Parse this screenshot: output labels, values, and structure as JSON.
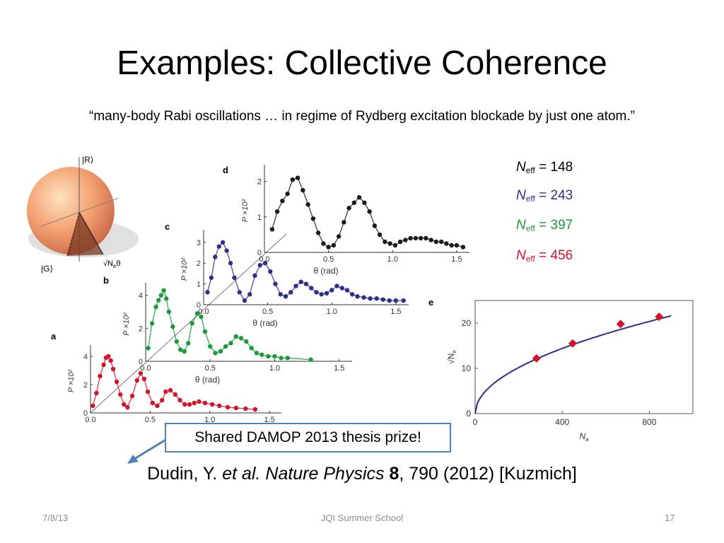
{
  "slide": {
    "title": "Examples: Collective Coherence",
    "quote": "“many-body Rabi oscillations … in regime of Rydberg excitation blockade by just one atom.”",
    "neff_list": [
      {
        "symbol": "N",
        "sub": "eff",
        "value": "= 148",
        "color": "#000000"
      },
      {
        "symbol": "N",
        "sub": "eff",
        "value": "= 243",
        "color": "#2e2e8c"
      },
      {
        "symbol": "N",
        "sub": "eff",
        "value": "= 397",
        "color": "#1a9a3a"
      },
      {
        "symbol": "N",
        "sub": "eff",
        "value": "= 456",
        "color": "#d4132a"
      }
    ],
    "prize": "Shared DAMOP 2013 thesis prize!",
    "citation": {
      "authors": "Dudin, Y. ",
      "etal": "et al.",
      "journal": " Nature Physics",
      "volume": " 8",
      "rest": ", 790 (2012) [Kuzmich]"
    },
    "footer": {
      "date": "7/8/13",
      "center": "JQI Summer School",
      "page": "17"
    }
  },
  "sphere": {
    "top_label": "|R⟩",
    "bottom_label": "|G⟩",
    "angle_label": "√N",
    "angle_sub": "e",
    "angle_theta": "θ"
  },
  "chart_data": [
    {
      "panel": "a",
      "type": "scatter",
      "xlabel": "θ (rad)",
      "ylabel": "P ×10²",
      "xticks": [
        "0.0",
        "0.5",
        "1.0",
        "1.5"
      ],
      "yticks": [
        "0",
        "2",
        "4"
      ],
      "xlim": [
        0,
        1.6
      ],
      "ylim": [
        0,
        4.5
      ],
      "color": "#d4132a",
      "x": [
        0.02,
        0.05,
        0.08,
        0.11,
        0.13,
        0.15,
        0.17,
        0.19,
        0.22,
        0.25,
        0.28,
        0.31,
        0.35,
        0.39,
        0.42,
        0.45,
        0.48,
        0.52,
        0.56,
        0.6,
        0.63,
        0.67,
        0.71,
        0.75,
        0.79,
        0.83,
        0.87,
        0.91,
        0.96,
        1.02,
        1.08,
        1.15,
        1.22,
        1.3,
        1.38
      ],
      "y": [
        0.5,
        1.4,
        2.6,
        3.4,
        3.9,
        4.0,
        3.7,
        3.1,
        2.2,
        1.3,
        0.6,
        0.4,
        1.2,
        2.3,
        2.8,
        2.4,
        1.5,
        0.7,
        0.5,
        0.9,
        1.5,
        1.6,
        1.3,
        0.9,
        0.6,
        0.6,
        0.7,
        0.8,
        0.7,
        0.6,
        0.5,
        0.4,
        0.35,
        0.3,
        0.25
      ]
    },
    {
      "panel": "b",
      "type": "scatter",
      "xlabel": "θ (rad)",
      "ylabel": "P ×10²",
      "xticks": [
        "0.0",
        "0.5",
        "1.0",
        "1.5"
      ],
      "yticks": [
        "0",
        "2",
        "4"
      ],
      "xlim": [
        0,
        1.6
      ],
      "ylim": [
        0,
        4.5
      ],
      "color": "#1a9a3a",
      "x": [
        0.02,
        0.05,
        0.08,
        0.1,
        0.12,
        0.14,
        0.16,
        0.18,
        0.21,
        0.24,
        0.27,
        0.3,
        0.33,
        0.36,
        0.4,
        0.43,
        0.46,
        0.5,
        0.54,
        0.58,
        0.62,
        0.66,
        0.7,
        0.74,
        0.78,
        0.82,
        0.86,
        0.9,
        0.95,
        1.0,
        1.05,
        1.1,
        1.28
      ],
      "y": [
        0.8,
        2.3,
        3.3,
        3.7,
        4.0,
        4.3,
        3.8,
        3.0,
        2.1,
        1.2,
        0.7,
        0.6,
        1.1,
        2.3,
        2.9,
        2.7,
        1.8,
        0.9,
        0.5,
        0.6,
        0.9,
        1.1,
        1.5,
        1.4,
        1.2,
        0.8,
        0.5,
        0.4,
        0.3,
        0.3,
        0.2,
        0.2,
        0.1
      ]
    },
    {
      "panel": "c",
      "type": "scatter",
      "xlabel": "θ (rad)",
      "ylabel": "P ×10²",
      "xticks": [
        "0.0",
        "0.5",
        "1.0",
        "1.5"
      ],
      "yticks": [
        "0",
        "1",
        "2",
        "3"
      ],
      "xlim": [
        0,
        1.6
      ],
      "ylim": [
        0,
        3.4
      ],
      "color": "#2e2e8c",
      "x": [
        0.03,
        0.06,
        0.09,
        0.12,
        0.15,
        0.18,
        0.21,
        0.24,
        0.28,
        0.32,
        0.36,
        0.4,
        0.44,
        0.48,
        0.52,
        0.56,
        0.6,
        0.64,
        0.68,
        0.72,
        0.76,
        0.8,
        0.84,
        0.88,
        0.92,
        0.96,
        1.0,
        1.04,
        1.08,
        1.12,
        1.16,
        1.2,
        1.25,
        1.3,
        1.35,
        1.4,
        1.45,
        1.5,
        1.56
      ],
      "y": [
        0.6,
        1.3,
        2.3,
        2.8,
        3.0,
        2.6,
        2.0,
        1.3,
        0.6,
        0.2,
        0.5,
        1.4,
        1.9,
        2.0,
        1.6,
        1.0,
        0.5,
        0.4,
        0.6,
        0.9,
        1.1,
        1.0,
        0.8,
        0.6,
        0.5,
        0.55,
        0.7,
        0.9,
        0.8,
        0.7,
        0.5,
        0.4,
        0.35,
        0.3,
        0.3,
        0.25,
        0.2,
        0.2,
        0.2
      ]
    },
    {
      "panel": "d",
      "type": "scatter",
      "xlabel": "θ (rad)",
      "ylabel": "P ×10²",
      "xticks": [
        "0.0",
        "0.5",
        "1.0",
        "1.5"
      ],
      "yticks": [
        "0",
        "1",
        "2"
      ],
      "xlim": [
        0,
        1.6
      ],
      "ylim": [
        0,
        2.35
      ],
      "color": "#1a1a1a",
      "x": [
        0.06,
        0.1,
        0.14,
        0.18,
        0.22,
        0.26,
        0.3,
        0.34,
        0.38,
        0.42,
        0.46,
        0.5,
        0.54,
        0.58,
        0.62,
        0.66,
        0.7,
        0.74,
        0.78,
        0.82,
        0.86,
        0.9,
        0.94,
        0.98,
        1.02,
        1.06,
        1.1,
        1.14,
        1.18,
        1.22,
        1.26,
        1.3,
        1.34,
        1.38,
        1.42,
        1.46,
        1.5,
        1.55
      ],
      "y": [
        0.65,
        1.15,
        1.45,
        1.65,
        2.05,
        2.1,
        1.75,
        1.35,
        0.95,
        0.55,
        0.25,
        0.15,
        0.2,
        0.45,
        0.85,
        1.25,
        1.4,
        1.55,
        1.4,
        1.15,
        0.75,
        0.5,
        0.3,
        0.25,
        0.2,
        0.3,
        0.35,
        0.4,
        0.4,
        0.4,
        0.4,
        0.35,
        0.3,
        0.3,
        0.25,
        0.2,
        0.2,
        0.15
      ]
    },
    {
      "panel": "e",
      "type": "scatter",
      "xlabel": "N",
      "xlabel_sub": "a",
      "ylabel": "√N",
      "ylabel_sub": "e",
      "xticks": [
        "0",
        "400",
        "800"
      ],
      "yticks": [
        "0",
        "10",
        "20"
      ],
      "xlim": [
        0,
        1000
      ],
      "ylim": [
        0,
        25
      ],
      "color": "#d4132a",
      "fit_color": "#2e2e8c",
      "x": [
        282,
        448,
        668,
        845
      ],
      "y": [
        12.2,
        15.5,
        19.8,
        21.4
      ]
    }
  ]
}
